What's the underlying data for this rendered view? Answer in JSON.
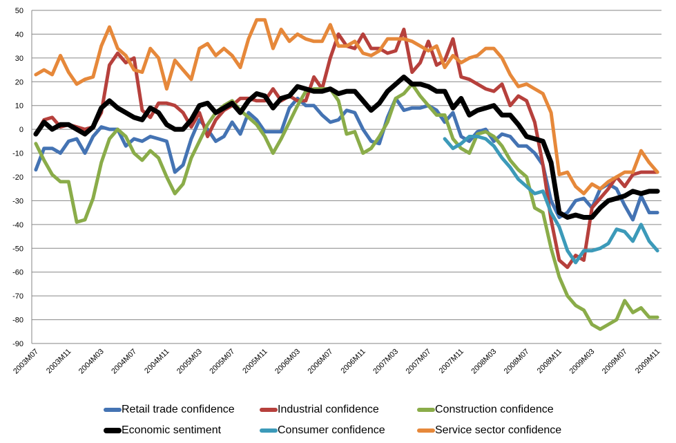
{
  "chart_data": {
    "type": "line",
    "title": "",
    "xlabel": "",
    "ylabel": "",
    "ylim": [
      -90,
      50
    ],
    "yticks": [
      50,
      40,
      30,
      20,
      10,
      0,
      -10,
      -20,
      -30,
      -40,
      -50,
      -60,
      -70,
      -80,
      -90
    ],
    "grid": true,
    "legend_position": "bottom",
    "x_tick_labels": [
      "2003M07",
      "2003M11",
      "2004M03",
      "2004M07",
      "2004M11",
      "2005M03",
      "2005M07",
      "2005M11",
      "2006M03",
      "2006M07",
      "2006M11",
      "2007M03",
      "2007M07",
      "2007M11",
      "2008M03",
      "2008M07",
      "2008M11",
      "2009M03",
      "2009M07",
      "2009M11"
    ],
    "x_start": "2003M07",
    "x_end": "2009M11",
    "n_points": 77,
    "series": [
      {
        "name": "Retail trade confidence",
        "color": "#4473b3",
        "values": [
          -17,
          -8,
          -8,
          -10,
          -5,
          -4,
          -10,
          -3,
          1,
          0,
          0,
          -7,
          -4,
          -5,
          -3,
          -4,
          -5,
          -18,
          -15,
          -4,
          4,
          0,
          -5,
          -3,
          3,
          -2,
          7,
          4,
          -1,
          -1,
          -1,
          9,
          13,
          10,
          10,
          6,
          3,
          4,
          8,
          7,
          0,
          -5,
          -6,
          5,
          13,
          8,
          9,
          9,
          10,
          8,
          3,
          7,
          -3,
          -5,
          -1,
          0,
          -5,
          -2,
          -3,
          -7,
          -7,
          -10,
          -15,
          -30,
          -37,
          -35,
          -30,
          -29,
          -33,
          -25,
          -23,
          -25,
          -32,
          -38,
          -28,
          -35,
          -35
        ],
        "start_index": 0
      },
      {
        "name": "Industrial confidence",
        "color": "#b6403c",
        "values": [
          -2,
          4,
          5,
          1,
          2,
          1,
          0,
          1,
          7,
          27,
          32,
          28,
          30,
          8,
          5,
          11,
          11,
          10,
          7,
          1,
          7,
          -3,
          4,
          8,
          10,
          13,
          13,
          12,
          12,
          17,
          12,
          14,
          12,
          12,
          22,
          17,
          30,
          40,
          35,
          34,
          40,
          34,
          34,
          32,
          33,
          42,
          24,
          28,
          37,
          27,
          29,
          38,
          22,
          21,
          19,
          17,
          16,
          19,
          10,
          14,
          12,
          3,
          -15,
          -38,
          -55,
          -58,
          -53,
          -55,
          -33,
          -29,
          -25,
          -20,
          -24,
          -19,
          -18,
          -18,
          -18
        ],
        "start_index": 0
      },
      {
        "name": "Construction confidence",
        "color": "#8aac49",
        "values": [
          -6,
          -13,
          -19,
          -22,
          -22,
          -39,
          -38,
          -29,
          -14,
          -4,
          0,
          -3,
          -10,
          -13,
          -9,
          -12,
          -20,
          -27,
          -23,
          -12,
          -5,
          2,
          7,
          10,
          12,
          8,
          5,
          2,
          -3,
          -10,
          -4,
          3,
          10,
          16,
          17,
          17,
          17,
          12,
          -2,
          -1,
          -10,
          -8,
          -3,
          3,
          13,
          15,
          19,
          14,
          10,
          6,
          6,
          -4,
          -8,
          -10,
          -2,
          -1,
          -3,
          -7,
          -13,
          -17,
          -20,
          -33,
          -35,
          -50,
          -62,
          -70,
          -74,
          -76,
          -82,
          -84,
          -82,
          -80,
          -72,
          -77,
          -75,
          -79,
          -79
        ],
        "start_index": 0
      },
      {
        "name": "Economic sentiment",
        "color": "#000000",
        "values": [
          -2,
          3,
          0,
          2,
          2,
          0,
          -2,
          1,
          9,
          12,
          9,
          7,
          5,
          4,
          9,
          7,
          2,
          0,
          0,
          4,
          10,
          11,
          7,
          9,
          11,
          7,
          12,
          15,
          14,
          9,
          13,
          14,
          18,
          17,
          16,
          16,
          17,
          15,
          16,
          16,
          12,
          8,
          11,
          16,
          19,
          22,
          19,
          19,
          18,
          16,
          16,
          9,
          13,
          6,
          8,
          9,
          10,
          6,
          6,
          2,
          -3,
          -4,
          -5,
          -14,
          -35,
          -37,
          -36,
          -37,
          -37,
          -33,
          -30,
          -29,
          -28,
          -26,
          -27,
          -26,
          -26
        ],
        "start_index": 0
      },
      {
        "name": "Consumer confidence",
        "color": "#3c9ab9",
        "values": [
          -4,
          -8,
          -6,
          -3,
          -3,
          -4,
          -7,
          -12,
          -16,
          -21,
          -24,
          -27,
          -26,
          -35,
          -41,
          -51,
          -56,
          -51,
          -51,
          -50,
          -48,
          -42,
          -43,
          -47,
          -40,
          -47,
          -51
        ],
        "start_index": 50
      },
      {
        "name": "Service sector confidence",
        "color": "#e6883a",
        "values": [
          23,
          25,
          23,
          31,
          24,
          19,
          21,
          22,
          35,
          43,
          34,
          31,
          25,
          24,
          34,
          30,
          17,
          29,
          25,
          21,
          34,
          36,
          31,
          34,
          31,
          26,
          38,
          46,
          46,
          34,
          42,
          37,
          40,
          38,
          37,
          37,
          44,
          35,
          35,
          37,
          32,
          31,
          33,
          38,
          38,
          38,
          37,
          35,
          33,
          35,
          26,
          31,
          28,
          30,
          31,
          34,
          34,
          30,
          23,
          18,
          19,
          17,
          15,
          7,
          -19,
          -18,
          -24,
          -27,
          -23,
          -25,
          -22,
          -20,
          -18,
          -18,
          -9,
          -14,
          -18
        ],
        "start_index": 0
      }
    ]
  }
}
